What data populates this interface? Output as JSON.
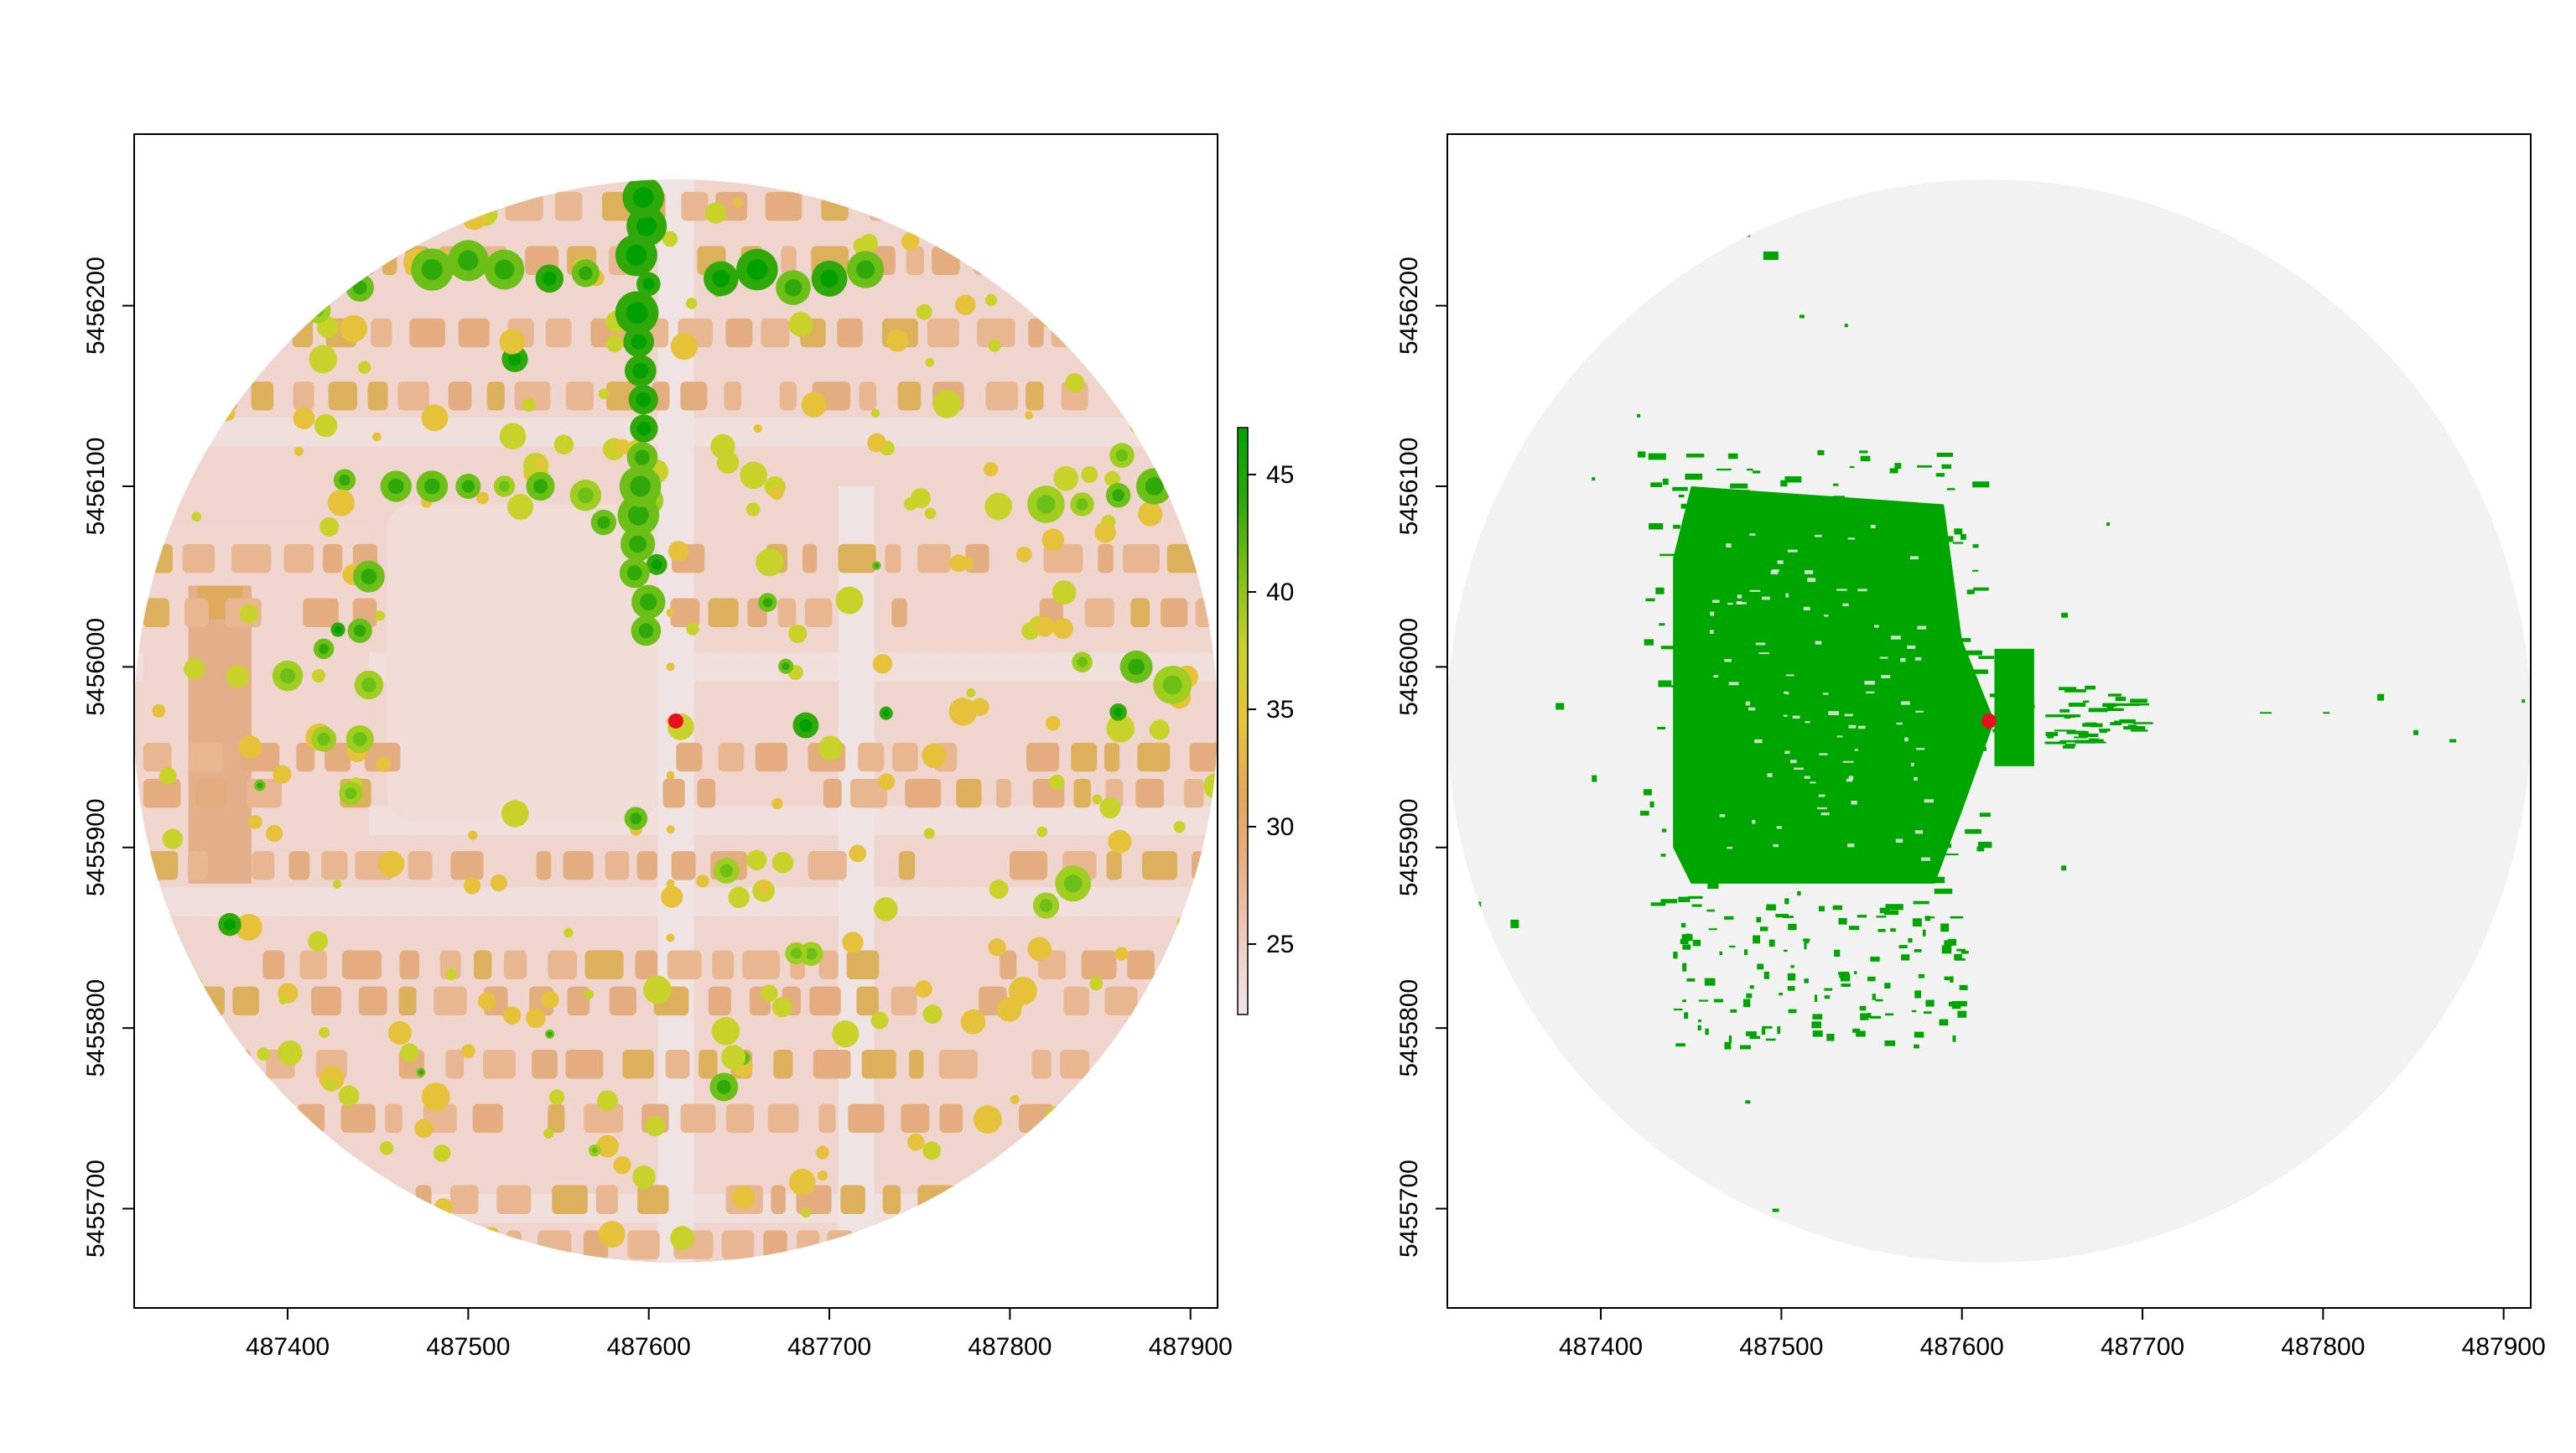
{
  "chart_data": [
    {
      "type": "heatmap",
      "title": "",
      "xlabel": "",
      "ylabel": "",
      "x_ticks": [
        "487400",
        "487500",
        "487600",
        "487700",
        "487800",
        "487900"
      ],
      "y_ticks": [
        "5455700",
        "5455800",
        "5455900",
        "5456000",
        "5456100",
        "5456200"
      ],
      "xlim": [
        487315,
        487915
      ],
      "ylim": [
        5455645,
        5456295
      ],
      "circle": {
        "center": [
          487615,
          5455970
        ],
        "radius": 300
      },
      "observer_point": {
        "x": 487615,
        "y": 5455970,
        "color": "#e8101e"
      },
      "legend": {
        "position": "right",
        "ticks": [
          "25",
          "30",
          "35",
          "40",
          "45"
        ],
        "range": [
          22,
          47
        ],
        "colors": [
          "#efe6ed",
          "#f0cbc2",
          "#e9b08a",
          "#e0a85c",
          "#e7c43a",
          "#c8d22a",
          "#7fc016",
          "#2ea70a",
          "#00a600"
        ]
      }
    },
    {
      "type": "heatmap",
      "title": "",
      "xlabel": "",
      "ylabel": "",
      "x_ticks": [
        "487400",
        "487500",
        "487600",
        "487700",
        "487800",
        "487900"
      ],
      "y_ticks": [
        "5455700",
        "5455800",
        "5455900",
        "5456000",
        "5456100",
        "5456200"
      ],
      "xlim": [
        487315,
        487915
      ],
      "ylim": [
        5455645,
        5456295
      ],
      "circle": {
        "center": [
          487615,
          5455970
        ],
        "radius": 300
      },
      "observer_point": {
        "x": 487615,
        "y": 5455970,
        "color": "#e8101e"
      },
      "colors": {
        "background": "#f2f2f2",
        "visible": "#00a600"
      }
    }
  ]
}
